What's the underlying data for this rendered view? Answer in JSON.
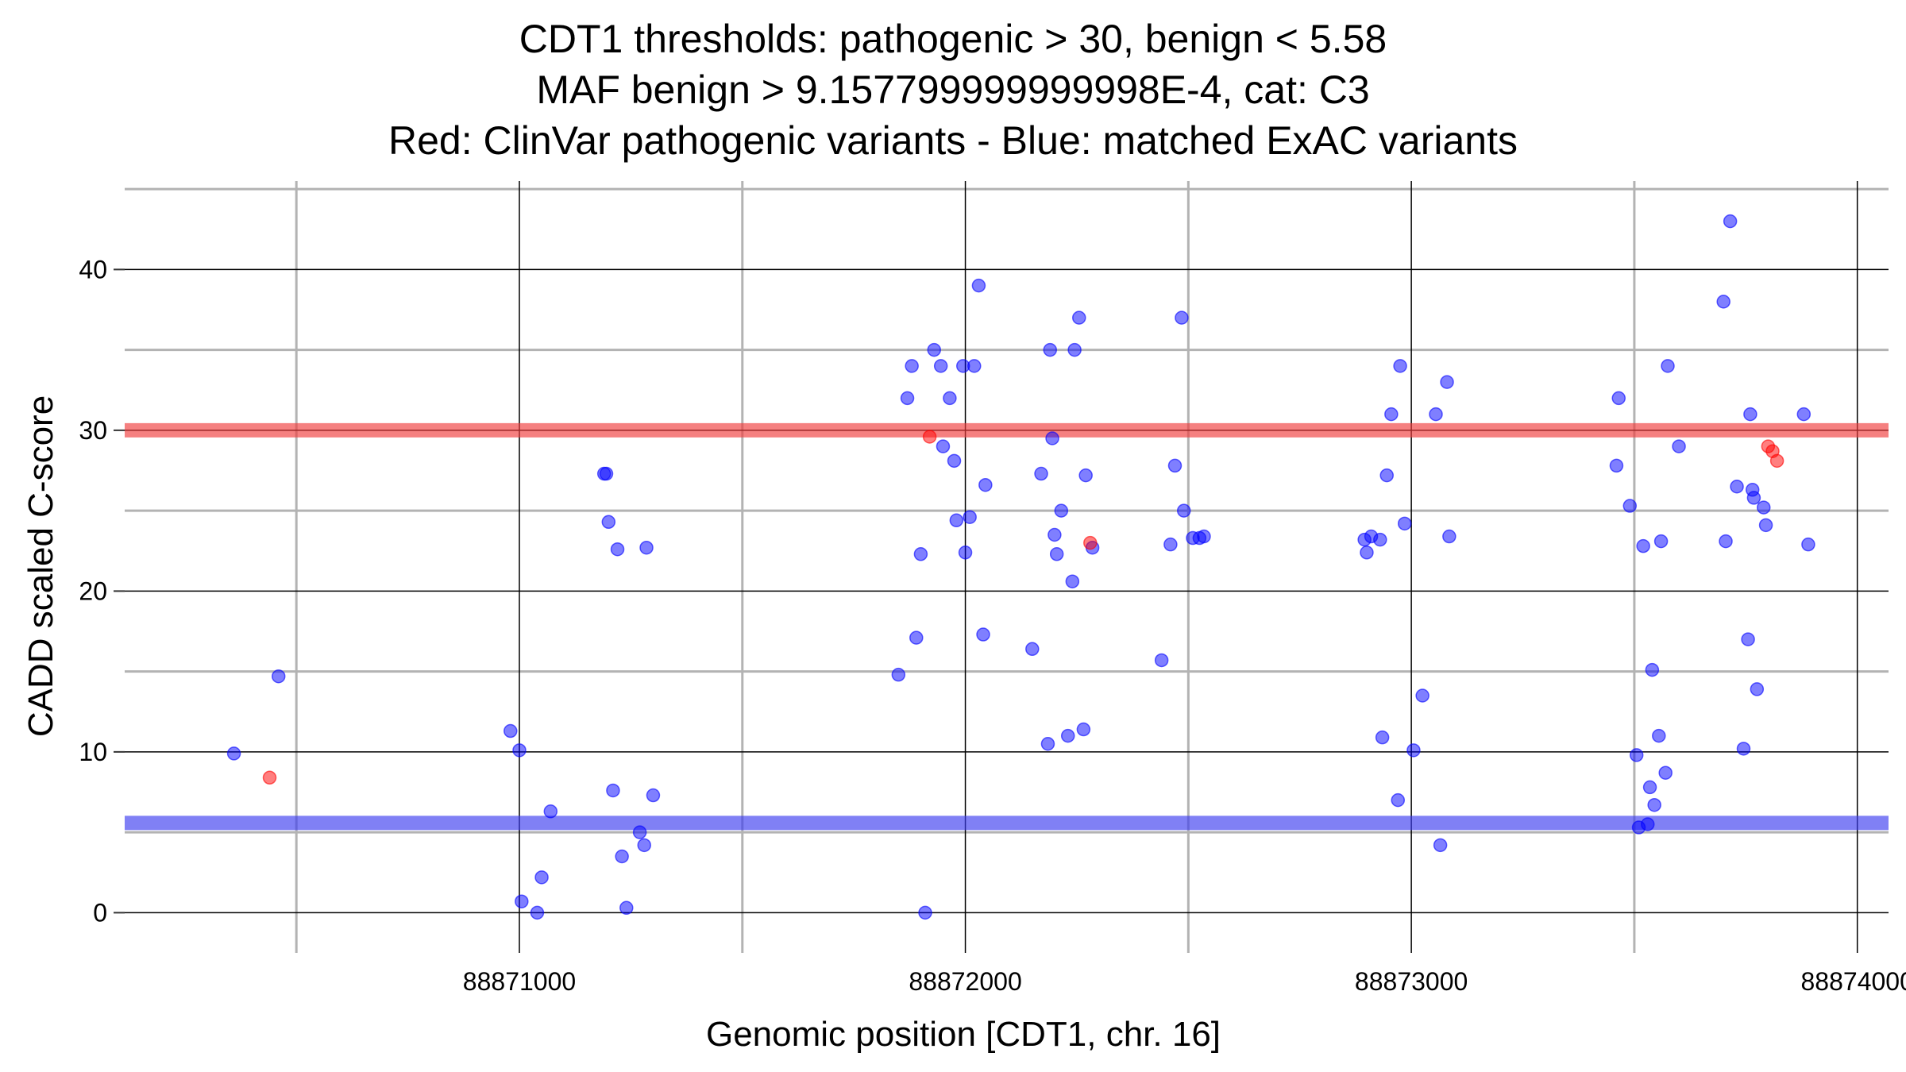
{
  "chart_data": {
    "type": "scatter",
    "title_lines": [
      "CDT1 thresholds: pathogenic > 30, benign < 5.58",
      "MAF benign > 9.157799999999998E-4, cat: C3",
      "Red: ClinVar pathogenic variants - Blue: matched ExAC variants"
    ],
    "xlabel": "Genomic position [CDT1, chr. 16]",
    "ylabel": "CADD scaled C-score",
    "xlim": [
      88870115,
      88874070
    ],
    "ylim": [
      -2.5,
      45.5
    ],
    "x_ticks": [
      88871000,
      88872000,
      88873000,
      88874000
    ],
    "x_tick_labels": [
      "88871000",
      "88872000",
      "88873000",
      "88874000"
    ],
    "y_ticks": [
      0,
      10,
      20,
      30,
      40
    ],
    "y_tick_labels": [
      "0",
      "10",
      "20",
      "30",
      "40"
    ],
    "thresholds": [
      {
        "name": "pathogenic",
        "value": 30,
        "color": "#f03c3c"
      },
      {
        "name": "benign",
        "value": 5.58,
        "color": "#3c3cf0"
      }
    ],
    "colors": {
      "clinvar": "#ff0000",
      "exac": "#0000ff",
      "grid_major": "#000000",
      "grid_minor": "#b3b3b3"
    },
    "series": [
      {
        "name": "ClinVar pathogenic variants",
        "color": "#ff0000",
        "points": [
          [
            88870440,
            8.4
          ],
          [
            88871920,
            29.6
          ],
          [
            88872280,
            23.0
          ],
          [
            88873800,
            29.0
          ],
          [
            88873810,
            28.7
          ],
          [
            88873820,
            28.1
          ]
        ]
      },
      {
        "name": "Matched ExAC variants",
        "color": "#0000ff",
        "points": [
          [
            88870360,
            9.9
          ],
          [
            88870460,
            14.7
          ],
          [
            88870980,
            11.3
          ],
          [
            88871000,
            10.1
          ],
          [
            88871005,
            0.7
          ],
          [
            88871040,
            0
          ],
          [
            88871050,
            2.2
          ],
          [
            88871070,
            6.3
          ],
          [
            88871190,
            27.3
          ],
          [
            88871195,
            27.3
          ],
          [
            88871200,
            24.3
          ],
          [
            88871210,
            7.6
          ],
          [
            88871220,
            22.6
          ],
          [
            88871230,
            3.5
          ],
          [
            88871240,
            0.3
          ],
          [
            88871270,
            5.0
          ],
          [
            88871280,
            4.2
          ],
          [
            88871285,
            22.7
          ],
          [
            88871300,
            7.3
          ],
          [
            88871850,
            14.8
          ],
          [
            88871870,
            32.0
          ],
          [
            88871880,
            34.0
          ],
          [
            88871890,
            17.1
          ],
          [
            88871900,
            22.3
          ],
          [
            88871910,
            0
          ],
          [
            88871930,
            35.0
          ],
          [
            88871945,
            34.0
          ],
          [
            88871950,
            29.0
          ],
          [
            88871965,
            32.0
          ],
          [
            88871975,
            28.1
          ],
          [
            88871980,
            24.4
          ],
          [
            88871995,
            34.0
          ],
          [
            88872000,
            22.4
          ],
          [
            88872010,
            24.6
          ],
          [
            88872020,
            34.0
          ],
          [
            88872030,
            39.0
          ],
          [
            88872040,
            17.3
          ],
          [
            88872045,
            26.6
          ],
          [
            88872150,
            16.4
          ],
          [
            88872170,
            27.3
          ],
          [
            88872185,
            10.5
          ],
          [
            88872190,
            35.0
          ],
          [
            88872195,
            29.5
          ],
          [
            88872200,
            23.5
          ],
          [
            88872205,
            22.3
          ],
          [
            88872215,
            25.0
          ],
          [
            88872230,
            11.0
          ],
          [
            88872240,
            20.6
          ],
          [
            88872245,
            35.0
          ],
          [
            88872255,
            37.0
          ],
          [
            88872265,
            11.4
          ],
          [
            88872270,
            27.2
          ],
          [
            88872285,
            22.7
          ],
          [
            88872440,
            15.7
          ],
          [
            88872460,
            22.9
          ],
          [
            88872470,
            27.8
          ],
          [
            88872485,
            37.0
          ],
          [
            88872490,
            25.0
          ],
          [
            88872510,
            23.3
          ],
          [
            88872525,
            23.3
          ],
          [
            88872535,
            23.4
          ],
          [
            88872895,
            23.2
          ],
          [
            88872900,
            22.4
          ],
          [
            88872910,
            23.4
          ],
          [
            88872930,
            23.2
          ],
          [
            88872935,
            10.9
          ],
          [
            88872945,
            27.2
          ],
          [
            88872955,
            31.0
          ],
          [
            88872970,
            7.0
          ],
          [
            88872975,
            34.0
          ],
          [
            88872985,
            24.2
          ],
          [
            88873005,
            10.1
          ],
          [
            88873025,
            13.5
          ],
          [
            88873055,
            31.0
          ],
          [
            88873065,
            4.2
          ],
          [
            88873080,
            33.0
          ],
          [
            88873085,
            23.4
          ],
          [
            88873460,
            27.8
          ],
          [
            88873465,
            32.0
          ],
          [
            88873490,
            25.3
          ],
          [
            88873505,
            9.8
          ],
          [
            88873510,
            5.3
          ],
          [
            88873520,
            22.8
          ],
          [
            88873530,
            5.5
          ],
          [
            88873535,
            7.8
          ],
          [
            88873540,
            15.1
          ],
          [
            88873545,
            6.7
          ],
          [
            88873555,
            11.0
          ],
          [
            88873560,
            23.1
          ],
          [
            88873570,
            8.7
          ],
          [
            88873575,
            34.0
          ],
          [
            88873600,
            29.0
          ],
          [
            88873700,
            38.0
          ],
          [
            88873705,
            23.1
          ],
          [
            88873715,
            43.0
          ],
          [
            88873730,
            26.5
          ],
          [
            88873745,
            10.2
          ],
          [
            88873755,
            17.0
          ],
          [
            88873760,
            31.0
          ],
          [
            88873765,
            26.3
          ],
          [
            88873768,
            25.8
          ],
          [
            88873775,
            13.9
          ],
          [
            88873790,
            25.2
          ],
          [
            88873795,
            24.1
          ],
          [
            88873880,
            31.0
          ],
          [
            88873890,
            22.9
          ]
        ]
      }
    ]
  }
}
